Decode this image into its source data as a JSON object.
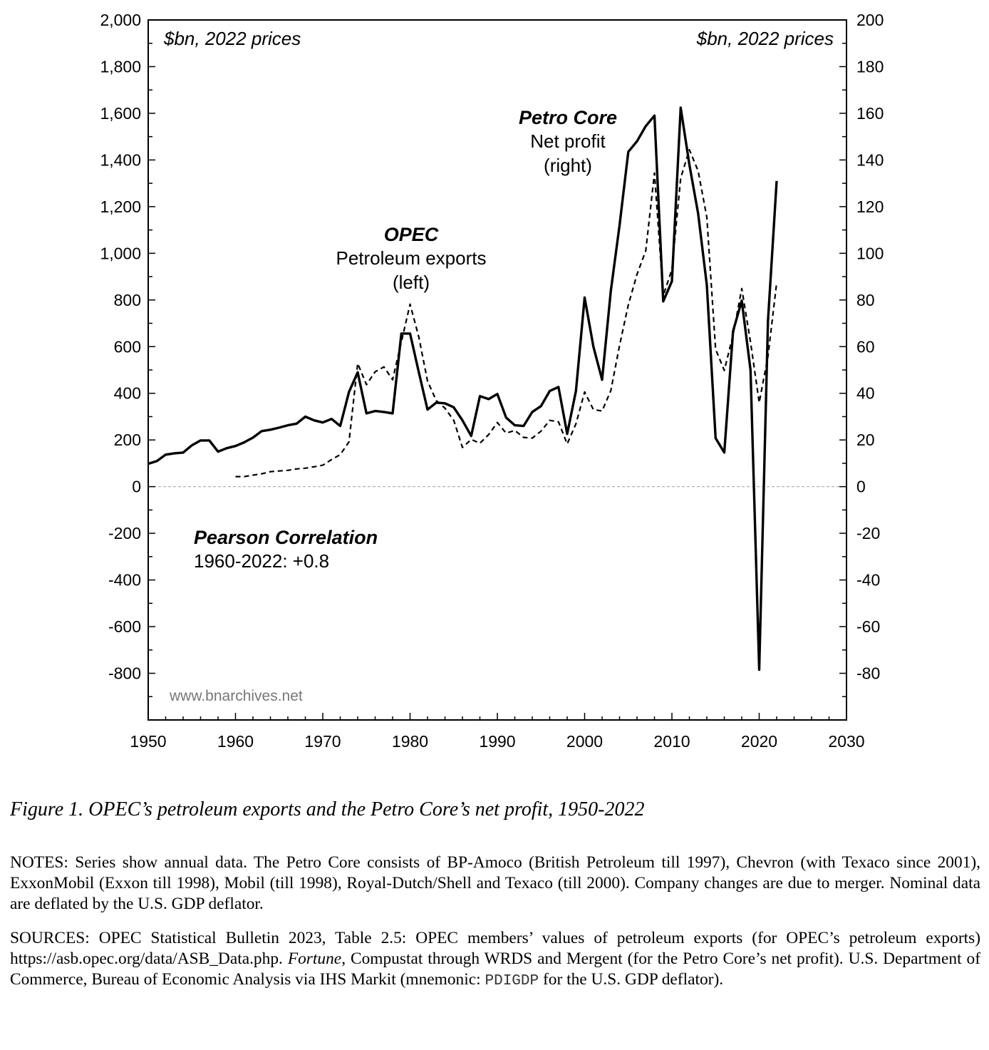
{
  "chart_data": {
    "type": "line",
    "title": "",
    "xlim": [
      1950,
      2030
    ],
    "x_ticks": [
      "1950",
      "1960",
      "1970",
      "1980",
      "1990",
      "2000",
      "2010",
      "2020",
      "2030"
    ],
    "left_axis": {
      "unit_label": "$bn, 2022 prices",
      "ylim": [
        -1000,
        2000
      ],
      "ticks": [
        "2,000",
        "1,800",
        "1,600",
        "1,400",
        "1,200",
        "1,000",
        "800",
        "600",
        "400",
        "200",
        "0",
        "-200",
        "-400",
        "-600",
        "-800"
      ]
    },
    "right_axis": {
      "unit_label": "$bn, 2022 prices",
      "ylim": [
        -100,
        200
      ],
      "ticks": [
        "200",
        "180",
        "160",
        "140",
        "120",
        "100",
        "80",
        "60",
        "40",
        "20",
        "0",
        "-20",
        "-40",
        "-60",
        "-80"
      ]
    },
    "zero_line": true,
    "series": [
      {
        "name": "OPEC Petroleum exports (left)",
        "axis": "left",
        "style": "dashed",
        "x": [
          1960,
          1961,
          1962,
          1963,
          1964,
          1965,
          1966,
          1967,
          1968,
          1969,
          1970,
          1971,
          1972,
          1973,
          1974,
          1975,
          1976,
          1977,
          1978,
          1979,
          1980,
          1981,
          1982,
          1983,
          1984,
          1985,
          1986,
          1987,
          1988,
          1989,
          1990,
          1991,
          1992,
          1993,
          1994,
          1995,
          1996,
          1997,
          1998,
          1999,
          2000,
          2001,
          2002,
          2003,
          2004,
          2005,
          2006,
          2007,
          2008,
          2009,
          2010,
          2011,
          2012,
          2013,
          2014,
          2015,
          2016,
          2017,
          2018,
          2019,
          2020,
          2021,
          2022
        ],
        "y": [
          43,
          43,
          49,
          55,
          64,
          67,
          70,
          76,
          79,
          85,
          92,
          116,
          137,
          192,
          528,
          437,
          492,
          513,
          458,
          620,
          782,
          641,
          452,
          369,
          336,
          284,
          168,
          202,
          186,
          223,
          275,
          229,
          241,
          211,
          208,
          238,
          284,
          278,
          183,
          269,
          406,
          330,
          324,
          412,
          605,
          779,
          910,
          1011,
          1344,
          818,
          931,
          1322,
          1444,
          1353,
          1154,
          589,
          498,
          650,
          849,
          620,
          360,
          559,
          873
        ]
      },
      {
        "name": "Petro Core Net profit (right)",
        "axis": "right",
        "style": "solid",
        "x": [
          1950,
          1951,
          1952,
          1953,
          1954,
          1955,
          1956,
          1957,
          1958,
          1959,
          1960,
          1961,
          1962,
          1963,
          1964,
          1965,
          1966,
          1967,
          1968,
          1969,
          1970,
          1971,
          1972,
          1973,
          1974,
          1975,
          1976,
          1977,
          1978,
          1979,
          1980,
          1981,
          1982,
          1983,
          1984,
          1985,
          1986,
          1987,
          1988,
          1989,
          1990,
          1991,
          1992,
          1993,
          1994,
          1995,
          1996,
          1997,
          1998,
          1999,
          2000,
          2001,
          2002,
          2003,
          2004,
          2005,
          2006,
          2007,
          2008,
          2009,
          2010,
          2011,
          2012,
          2013,
          2014,
          2015,
          2016,
          2017,
          2018,
          2019,
          2020,
          2021,
          2022
        ],
        "y": [
          9.8,
          11,
          13.7,
          14.3,
          14.6,
          17.7,
          19.8,
          19.8,
          15,
          16.5,
          17.4,
          19,
          21,
          23.8,
          24.4,
          25.3,
          26.3,
          27,
          30,
          28.4,
          27.5,
          29,
          26,
          40.6,
          49,
          31.4,
          32.4,
          32,
          31.4,
          65.6,
          65.6,
          49,
          33,
          36,
          35.7,
          34,
          28.4,
          21.7,
          38.8,
          37.5,
          39.7,
          29.6,
          26.3,
          26,
          32,
          34.5,
          41,
          42.7,
          22.6,
          41,
          81,
          60,
          45.8,
          84,
          112,
          143.5,
          148,
          154.5,
          159,
          79.4,
          88,
          162.4,
          138,
          117,
          86.4,
          20.8,
          14.6,
          66.6,
          79.7,
          50,
          -78.5,
          71,
          131
        ]
      }
    ],
    "annotations": {
      "opec_title": "OPEC",
      "opec_line1": "Petroleum exports",
      "opec_line2": "(left)",
      "petro_title": "Petro Core",
      "petro_line1": "Net profit",
      "petro_line2": "(right)",
      "pearson_title": "Pearson Correlation",
      "pearson_value": "1960-2022: +0.8",
      "watermark": "www.bnarchives.net"
    }
  },
  "caption": "Figure 1. OPEC’s petroleum exports and the Petro Core’s net profit, 1950-2022",
  "notes": "NOTES: Series show annual data. The Petro Core consists of BP-Amoco (British Petroleum till 1997), Chevron (with Texaco since 2001), ExxonMobil (Exxon till 1998), Mobil (till 1998), Royal-Dutch/Shell and Texaco (till 2000). Company changes are due to merger. Nominal data are deflated by the U.S. GDP deflator.",
  "sources": {
    "part1": "SOURCES: OPEC Statistical Bulletin 2023, Table 2.5: OPEC members’ values of petroleum exports (for OPEC’s petroleum exports) https://asb.opec.org/data/ASB_Data.php. ",
    "fortune": "Fortune",
    "part2": ", Compustat through WRDS and Mergent (for the Petro Core’s net profit). U.S. Department of Commerce, Bureau of Economic Analysis via IHS Markit (mnemonic: ",
    "mnemonic": "PDIGDP",
    "part3": " for the U.S. GDP deflator)."
  }
}
